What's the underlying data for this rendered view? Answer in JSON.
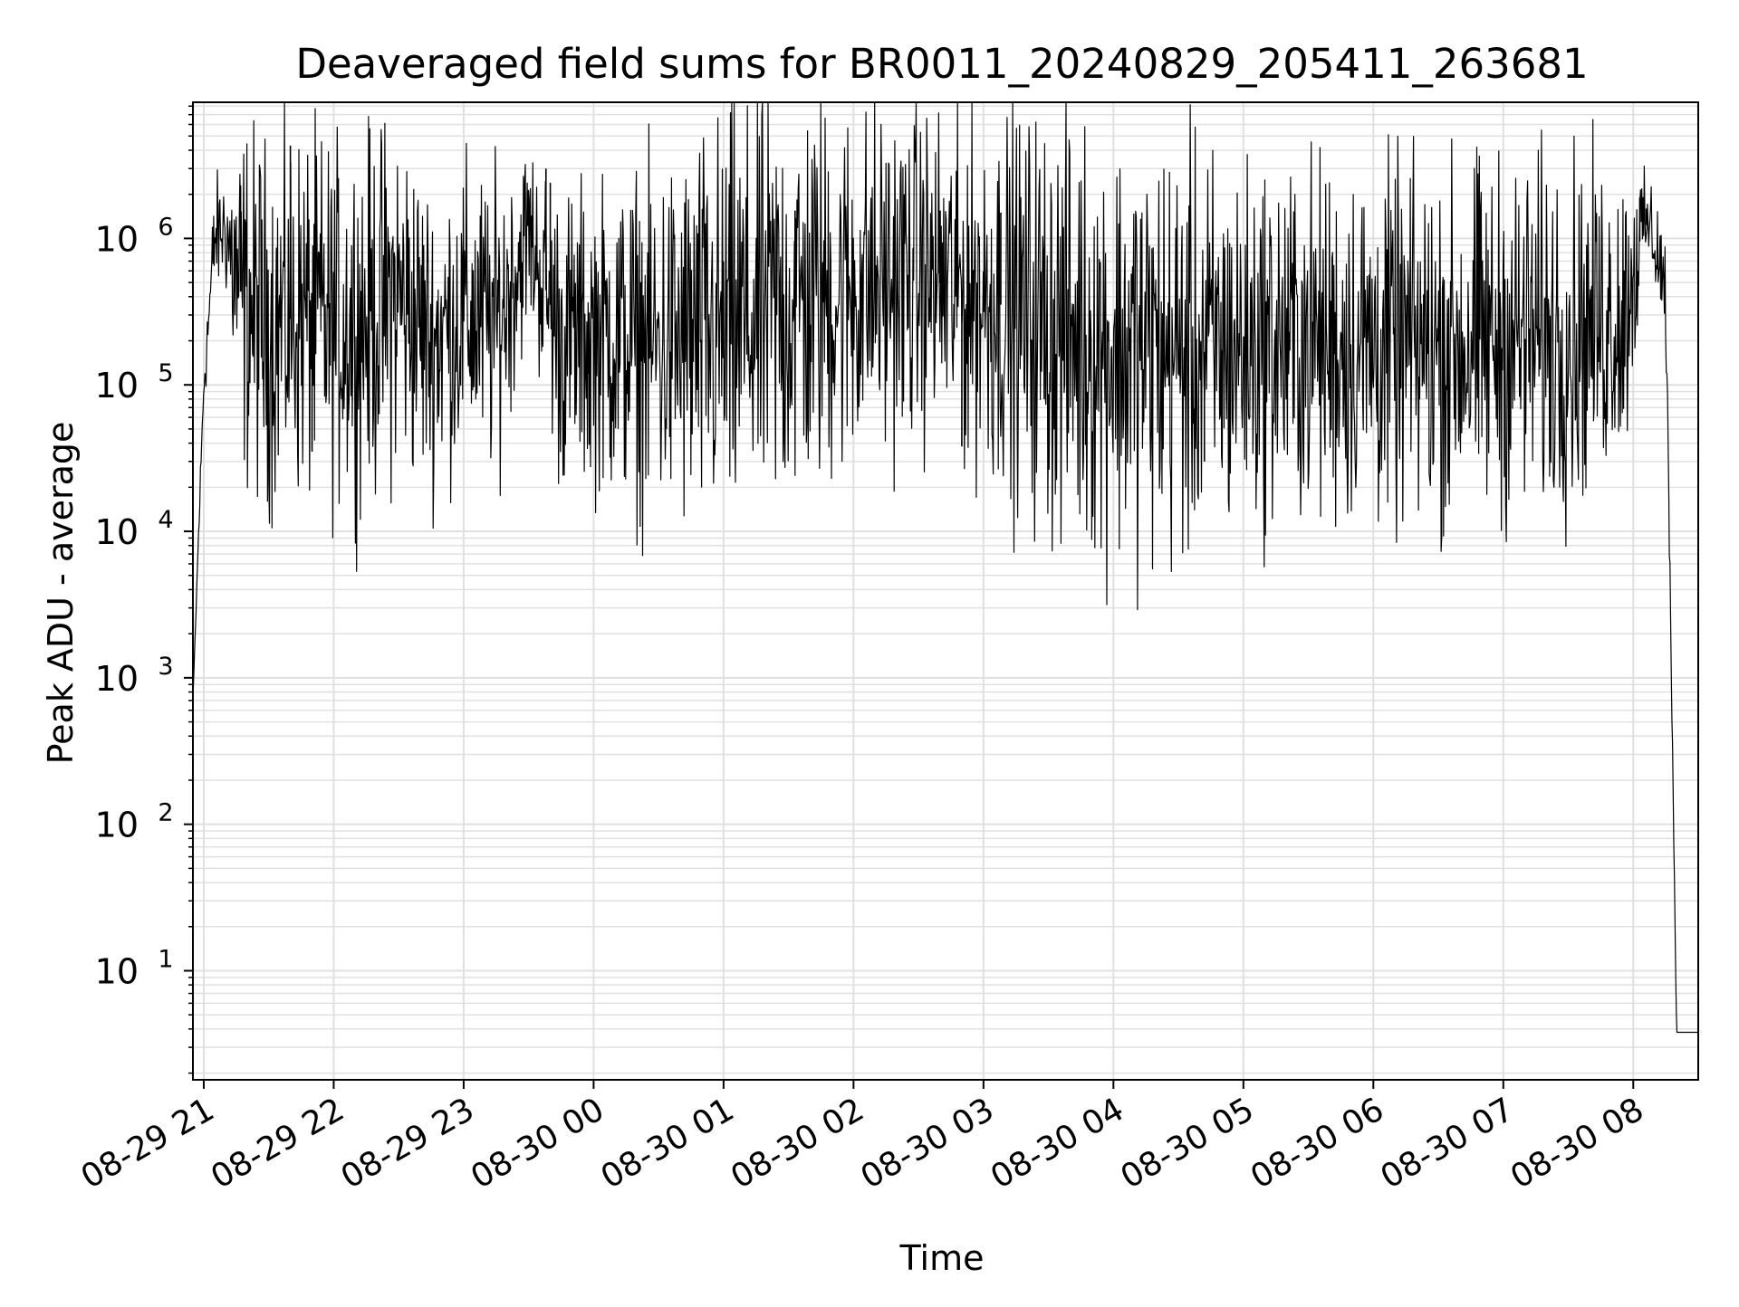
{
  "chart_data": {
    "type": "line",
    "title": "Deaveraged field sums for BR0011_20240829_205411_263681",
    "xlabel": "Time",
    "ylabel": "Peak ADU - average",
    "yscale": "log",
    "ylim": [
      1.8,
      8500000
    ],
    "xlim": [
      "2024-08-29 20:55",
      "2024-08-30 08:30"
    ],
    "x_tick_labels": [
      "08-29 21",
      "08-29 22",
      "08-29 23",
      "08-30 00",
      "08-30 01",
      "08-30 02",
      "08-30 03",
      "08-30 04",
      "08-30 05",
      "08-30 06",
      "08-30 07",
      "08-30 08"
    ],
    "x_tick_values": [
      "2024-08-29 21:00",
      "2024-08-29 22:00",
      "2024-08-29 23:00",
      "2024-08-30 00:00",
      "2024-08-30 01:00",
      "2024-08-30 02:00",
      "2024-08-30 03:00",
      "2024-08-30 04:00",
      "2024-08-30 05:00",
      "2024-08-30 06:00",
      "2024-08-30 07:00",
      "2024-08-30 08:00"
    ],
    "y_tick_labels": [
      {
        "base": "10",
        "exp": "1",
        "value": 10
      },
      {
        "base": "10",
        "exp": "2",
        "value": 100
      },
      {
        "base": "10",
        "exp": "3",
        "value": 1000
      },
      {
        "base": "10",
        "exp": "4",
        "value": 10000
      },
      {
        "base": "10",
        "exp": "5",
        "value": 100000
      },
      {
        "base": "10",
        "exp": "6",
        "value": 1000000
      }
    ],
    "grid": true,
    "line_color": "#000000",
    "grid_color": "#e0e0e0",
    "envelope": {
      "x": [
        "2024-08-29 20:55",
        "2024-08-29 21:00",
        "2024-08-29 21:05",
        "2024-08-29 21:10",
        "2024-08-29 21:15",
        "2024-08-29 21:20",
        "2024-08-29 21:30",
        "2024-08-29 21:45",
        "2024-08-29 22:00",
        "2024-08-29 22:15",
        "2024-08-29 22:30",
        "2024-08-29 22:45",
        "2024-08-29 23:00",
        "2024-08-29 23:15",
        "2024-08-29 23:30",
        "2024-08-29 23:45",
        "2024-08-30 00:00",
        "2024-08-30 00:30",
        "2024-08-30 01:00",
        "2024-08-30 01:30",
        "2024-08-30 02:00",
        "2024-08-30 02:30",
        "2024-08-30 03:00",
        "2024-08-30 03:30",
        "2024-08-30 04:00",
        "2024-08-30 04:30",
        "2024-08-30 05:00",
        "2024-08-30 05:30",
        "2024-08-30 06:00",
        "2024-08-30 06:30",
        "2024-08-30 07:00",
        "2024-08-30 07:30",
        "2024-08-30 07:55",
        "2024-08-30 08:00",
        "2024-08-30 08:05",
        "2024-08-30 08:10",
        "2024-08-30 08:15",
        "2024-08-30 08:20",
        "2024-08-30 08:30"
      ],
      "center": [
        700,
        100000,
        1000000,
        1200000,
        500000,
        350000,
        250000,
        300000,
        250000,
        280000,
        400000,
        200000,
        300000,
        250000,
        1100000,
        200000,
        220000,
        180000,
        220000,
        350000,
        450000,
        550000,
        400000,
        250000,
        180000,
        160000,
        180000,
        200000,
        180000,
        180000,
        200000,
        220000,
        300000,
        600000,
        1300000,
        1000000,
        400000,
        3.8,
        3.8
      ],
      "spread": [
        0,
        0.1,
        0.2,
        0.2,
        0.5,
        0.6,
        0.6,
        0.6,
        0.6,
        0.6,
        0.6,
        0.5,
        0.5,
        0.5,
        0.3,
        0.5,
        0.5,
        0.6,
        0.7,
        0.7,
        0.6,
        0.55,
        0.6,
        0.7,
        0.7,
        0.7,
        0.6,
        0.6,
        0.6,
        0.6,
        0.6,
        0.6,
        0.5,
        0.4,
        0.15,
        0.2,
        0.2,
        0,
        0
      ]
    },
    "spikes": [
      {
        "x": "2024-08-29 21:40",
        "y": 4300000
      },
      {
        "x": "2024-08-29 21:17",
        "y": 2300000
      },
      {
        "x": "2024-08-29 23:38",
        "y": 3000000
      },
      {
        "x": "2024-08-29 23:40",
        "y": 2400000
      },
      {
        "x": "2024-08-30 01:33",
        "y": 1550000
      },
      {
        "x": "2024-08-30 02:23",
        "y": 1550000
      },
      {
        "x": "2024-08-30 02:40",
        "y": 1550000
      },
      {
        "x": "2024-08-30 03:08",
        "y": 1500000
      },
      {
        "x": "2024-08-30 08:03",
        "y": 1900000
      },
      {
        "x": "2024-08-30 08:06",
        "y": 1600000
      },
      {
        "x": "2024-08-29 21:50",
        "y": 35000
      },
      {
        "x": "2024-08-30 04:42",
        "y": 30000
      },
      {
        "x": "2024-08-30 04:50",
        "y": 33000
      },
      {
        "x": "2024-08-30 02:50",
        "y": 38000
      },
      {
        "x": "2024-08-29 23:58",
        "y": 39000
      }
    ]
  }
}
